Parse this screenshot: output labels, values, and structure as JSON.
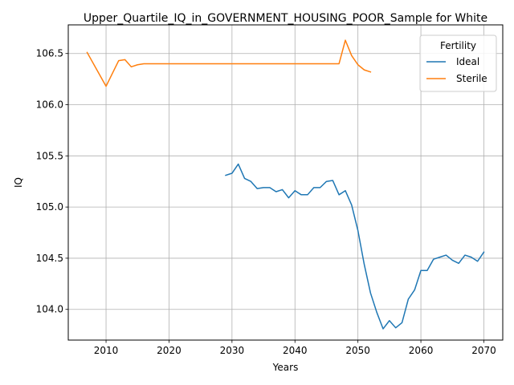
{
  "chart_data": {
    "type": "line",
    "title": "Upper_Quartile_IQ_in_GOVERNMENT_HOUSING_POOR_Sample for White",
    "xlabel": "Years",
    "ylabel": "IQ",
    "xlim": [
      2004,
      2073
    ],
    "ylim": [
      103.7,
      106.78
    ],
    "xticks": [
      2010,
      2020,
      2030,
      2040,
      2050,
      2060,
      2070
    ],
    "yticks": [
      104.0,
      104.5,
      105.0,
      105.5,
      106.0,
      106.5
    ],
    "ytick_labels": [
      "104.0",
      "104.5",
      "105.0",
      "105.5",
      "106.0",
      "106.5"
    ],
    "grid": true,
    "legend": {
      "title": "Fertility",
      "placement": "top-right"
    },
    "series": [
      {
        "name": "Ideal",
        "color": "#1f77b4",
        "x": [
          2029,
          2030,
          2031,
          2032,
          2033,
          2034,
          2035,
          2036,
          2037,
          2038,
          2039,
          2040,
          2041,
          2042,
          2043,
          2044,
          2045,
          2046,
          2047,
          2048,
          2049,
          2050,
          2051,
          2052,
          2053,
          2054,
          2055,
          2056,
          2057,
          2058,
          2059,
          2060,
          2061,
          2062,
          2063,
          2064,
          2065,
          2066,
          2067,
          2068,
          2069,
          2070
        ],
        "y": [
          105.31,
          105.33,
          105.42,
          105.28,
          105.25,
          105.18,
          105.19,
          105.19,
          105.15,
          105.17,
          105.09,
          105.16,
          105.12,
          105.12,
          105.19,
          105.19,
          105.25,
          105.26,
          105.12,
          105.16,
          105.02,
          104.77,
          104.44,
          104.16,
          103.97,
          103.81,
          103.89,
          103.82,
          103.87,
          104.1,
          104.19,
          104.38,
          104.38,
          104.49,
          104.51,
          104.53,
          104.48,
          104.45,
          104.53,
          104.51,
          104.47,
          104.56
        ]
      },
      {
        "name": "Sterile",
        "color": "#ff7f0e",
        "x": [
          2007,
          2010,
          2012,
          2013,
          2014,
          2015,
          2016,
          2017,
          2020,
          2030,
          2040,
          2045,
          2047,
          2048,
          2049,
          2050,
          2051,
          2052
        ],
        "y": [
          106.51,
          106.18,
          106.43,
          106.44,
          106.37,
          106.39,
          106.4,
          106.4,
          106.4,
          106.4,
          106.4,
          106.4,
          106.4,
          106.63,
          106.48,
          106.39,
          106.34,
          106.32
        ]
      }
    ]
  }
}
